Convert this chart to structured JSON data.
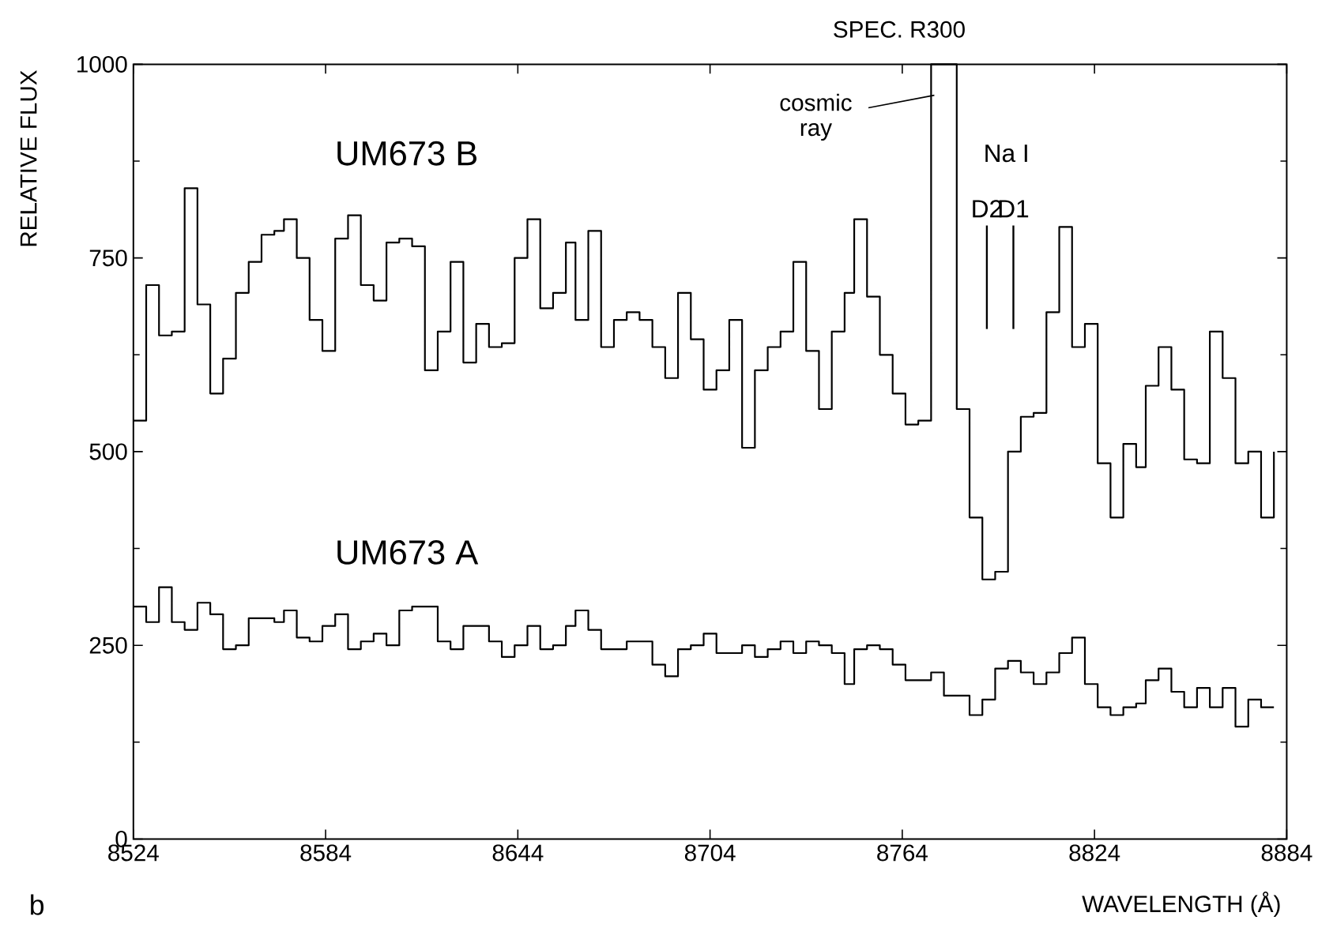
{
  "chart_data": {
    "type": "step",
    "title": "SPEC. R300",
    "xlabel": "WAVELENGTH (Å)",
    "ylabel": "RELATIVE FLUX",
    "x": [
      8524,
      8528,
      8532,
      8536,
      8540,
      8544,
      8548,
      8552,
      8556,
      8560,
      8564,
      8568,
      8571,
      8575,
      8579,
      8583,
      8587,
      8591,
      8595,
      8599,
      8603,
      8607,
      8611,
      8615,
      8619,
      8623,
      8627,
      8631,
      8635,
      8639,
      8643,
      8647,
      8651,
      8655,
      8659,
      8662,
      8666,
      8670,
      8674,
      8678,
      8682,
      8686,
      8690,
      8694,
      8698,
      8702,
      8706,
      8710,
      8714,
      8718,
      8722,
      8726,
      8730,
      8734,
      8738,
      8742,
      8746,
      8749,
      8753,
      8757,
      8761,
      8765,
      8769,
      8773,
      8777,
      8781,
      8785,
      8789,
      8793,
      8797,
      8801,
      8805,
      8809,
      8813,
      8817,
      8821,
      8825,
      8829,
      8833,
      8837,
      8840,
      8844,
      8848,
      8852,
      8856,
      8860,
      8864,
      8868,
      8872,
      8876,
      8880
    ],
    "series": [
      {
        "name": "UM673 B",
        "color": "#000000",
        "values": [
          540,
          715,
          650,
          655,
          840,
          690,
          575,
          620,
          705,
          745,
          780,
          785,
          800,
          750,
          670,
          630,
          775,
          805,
          715,
          695,
          770,
          775,
          765,
          605,
          655,
          745,
          615,
          665,
          635,
          640,
          750,
          800,
          685,
          705,
          770,
          670,
          785,
          635,
          670,
          680,
          670,
          635,
          595,
          705,
          645,
          580,
          605,
          670,
          505,
          605,
          635,
          655,
          745,
          630,
          555,
          655,
          705,
          800,
          700,
          625,
          575,
          535,
          540,
          1000,
          1000,
          555,
          415,
          335,
          345,
          500,
          545,
          550,
          680,
          790,
          635,
          665,
          485,
          415,
          510,
          480,
          585,
          635,
          580,
          490,
          485,
          655,
          595,
          485,
          500,
          415,
          500
        ]
      },
      {
        "name": "UM673 A",
        "color": "#000000",
        "values": [
          300,
          280,
          325,
          280,
          270,
          305,
          290,
          245,
          250,
          285,
          285,
          280,
          295,
          260,
          255,
          275,
          290,
          245,
          255,
          265,
          250,
          295,
          300,
          300,
          255,
          245,
          275,
          275,
          255,
          235,
          250,
          275,
          245,
          250,
          275,
          295,
          270,
          245,
          245,
          255,
          255,
          225,
          210,
          245,
          250,
          265,
          240,
          240,
          250,
          235,
          245,
          255,
          240,
          255,
          250,
          240,
          200,
          245,
          250,
          245,
          225,
          205,
          205,
          215,
          185,
          185,
          160,
          180,
          220,
          230,
          215,
          200,
          215,
          240,
          260,
          200,
          170,
          160,
          170,
          175,
          205,
          220,
          190,
          170,
          195,
          170,
          195,
          145,
          180,
          170,
          170
        ]
      }
    ],
    "xlim": [
      8524,
      8884
    ],
    "ylim": [
      0,
      1000
    ],
    "xticks": [
      8524,
      8584,
      8644,
      8704,
      8764,
      8824,
      8884
    ],
    "yticks": [
      0,
      250,
      500,
      750,
      1000
    ],
    "annotations": [
      {
        "text": "cosmic ray",
        "x": 8774,
        "y": 960
      },
      "Na I",
      "D2",
      "D1",
      "b"
    ]
  }
}
